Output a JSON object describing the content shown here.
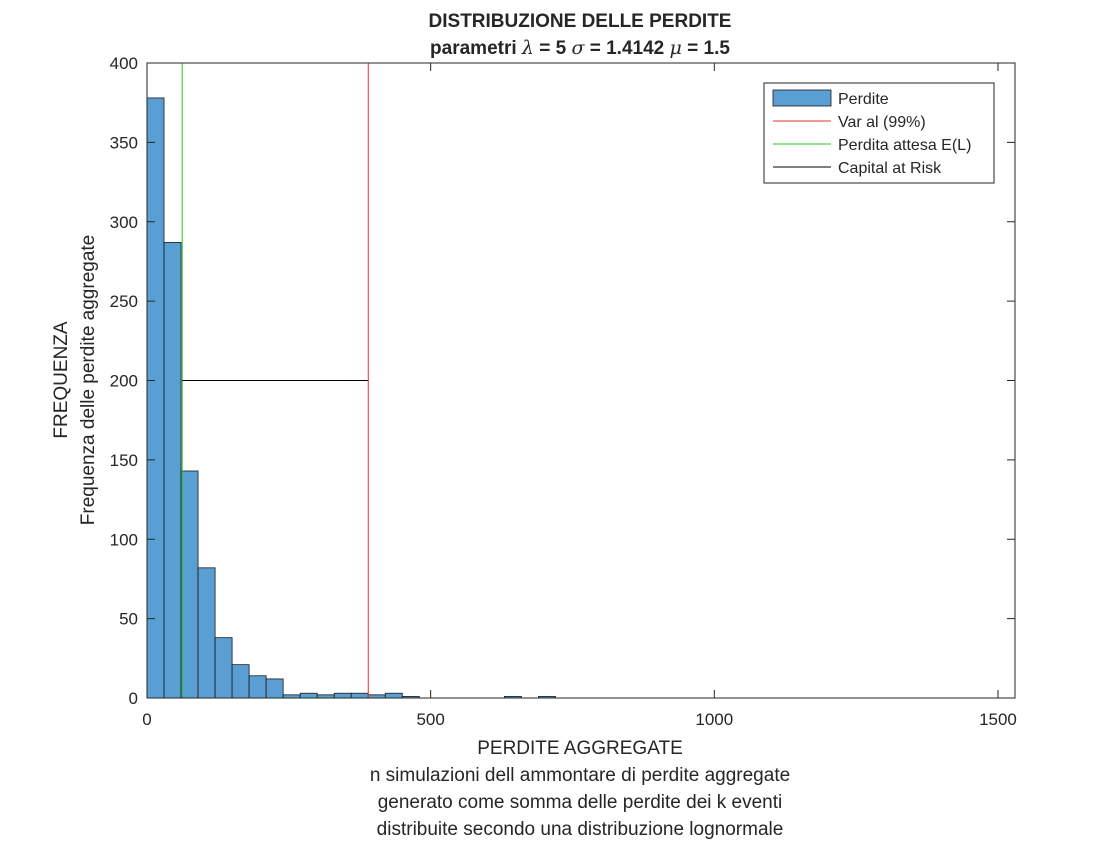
{
  "chart_data": {
    "type": "bar",
    "title": "DISTRIBUZIONE DELLE PERDITE",
    "subtitle_parts": [
      {
        "text": "parametri ",
        "italic": false
      },
      {
        "text": "λ",
        "italic": true
      },
      {
        "text": " = 5 ",
        "italic": false
      },
      {
        "text": "σ",
        "italic": true
      },
      {
        "text": " = 1.4142 ",
        "italic": false
      },
      {
        "text": "μ",
        "italic": true
      },
      {
        "text": " = 1.5",
        "italic": false
      }
    ],
    "xlabel_lines": [
      "PERDITE AGGREGATE",
      "n simulazioni dell ammontare di perdite aggregate",
      "generato come somma delle perdite dei k eventi",
      "distribuite secondo una distribuzione lognormale"
    ],
    "ylabel_lines": [
      "FREQUENZA",
      "Frequenza delle perdite aggregate"
    ],
    "xlim": [
      0,
      1530
    ],
    "ylim": [
      0,
      400
    ],
    "xticks": [
      0,
      500,
      1000,
      1500
    ],
    "xtick_labels": [
      "0",
      "500",
      "1000",
      "1500"
    ],
    "yticks": [
      0,
      50,
      100,
      150,
      200,
      250,
      300,
      350,
      400
    ],
    "ytick_labels": [
      "0",
      "50",
      "100",
      "150",
      "200",
      "250",
      "300",
      "350",
      "400"
    ],
    "histogram": {
      "series_name": "Perdite",
      "color": "#5a9fd4",
      "edge_color": "#1a1a1a",
      "bin_width": 30,
      "bin_start": 0,
      "counts": [
        378,
        287,
        143,
        82,
        38,
        21,
        14,
        12,
        2,
        3,
        2,
        3,
        3,
        2,
        3,
        1,
        0,
        0,
        0,
        0,
        0,
        1,
        0,
        1,
        0,
        0,
        0,
        0,
        0,
        0,
        0,
        0,
        0,
        0,
        0,
        0,
        0,
        0,
        0,
        0,
        0,
        0,
        0,
        0,
        0,
        0,
        0,
        0,
        0,
        0,
        0
      ]
    },
    "lines": [
      {
        "name": "Var al (99%)",
        "color": "#e8302a",
        "type": "vertical",
        "x": 390
      },
      {
        "name": "Perdita attesa E(L)",
        "color": "#22c922",
        "type": "vertical",
        "x": 62
      },
      {
        "name": "Capital at Risk",
        "color": "#000000",
        "type": "horizontal",
        "y": 200,
        "x_from": 62,
        "x_to": 390
      }
    ],
    "legend": {
      "placement": "top-right",
      "entries": [
        "Perdite",
        "Var al (99%)",
        "Perdita attesa E(L)",
        "Capital at Risk"
      ]
    }
  }
}
